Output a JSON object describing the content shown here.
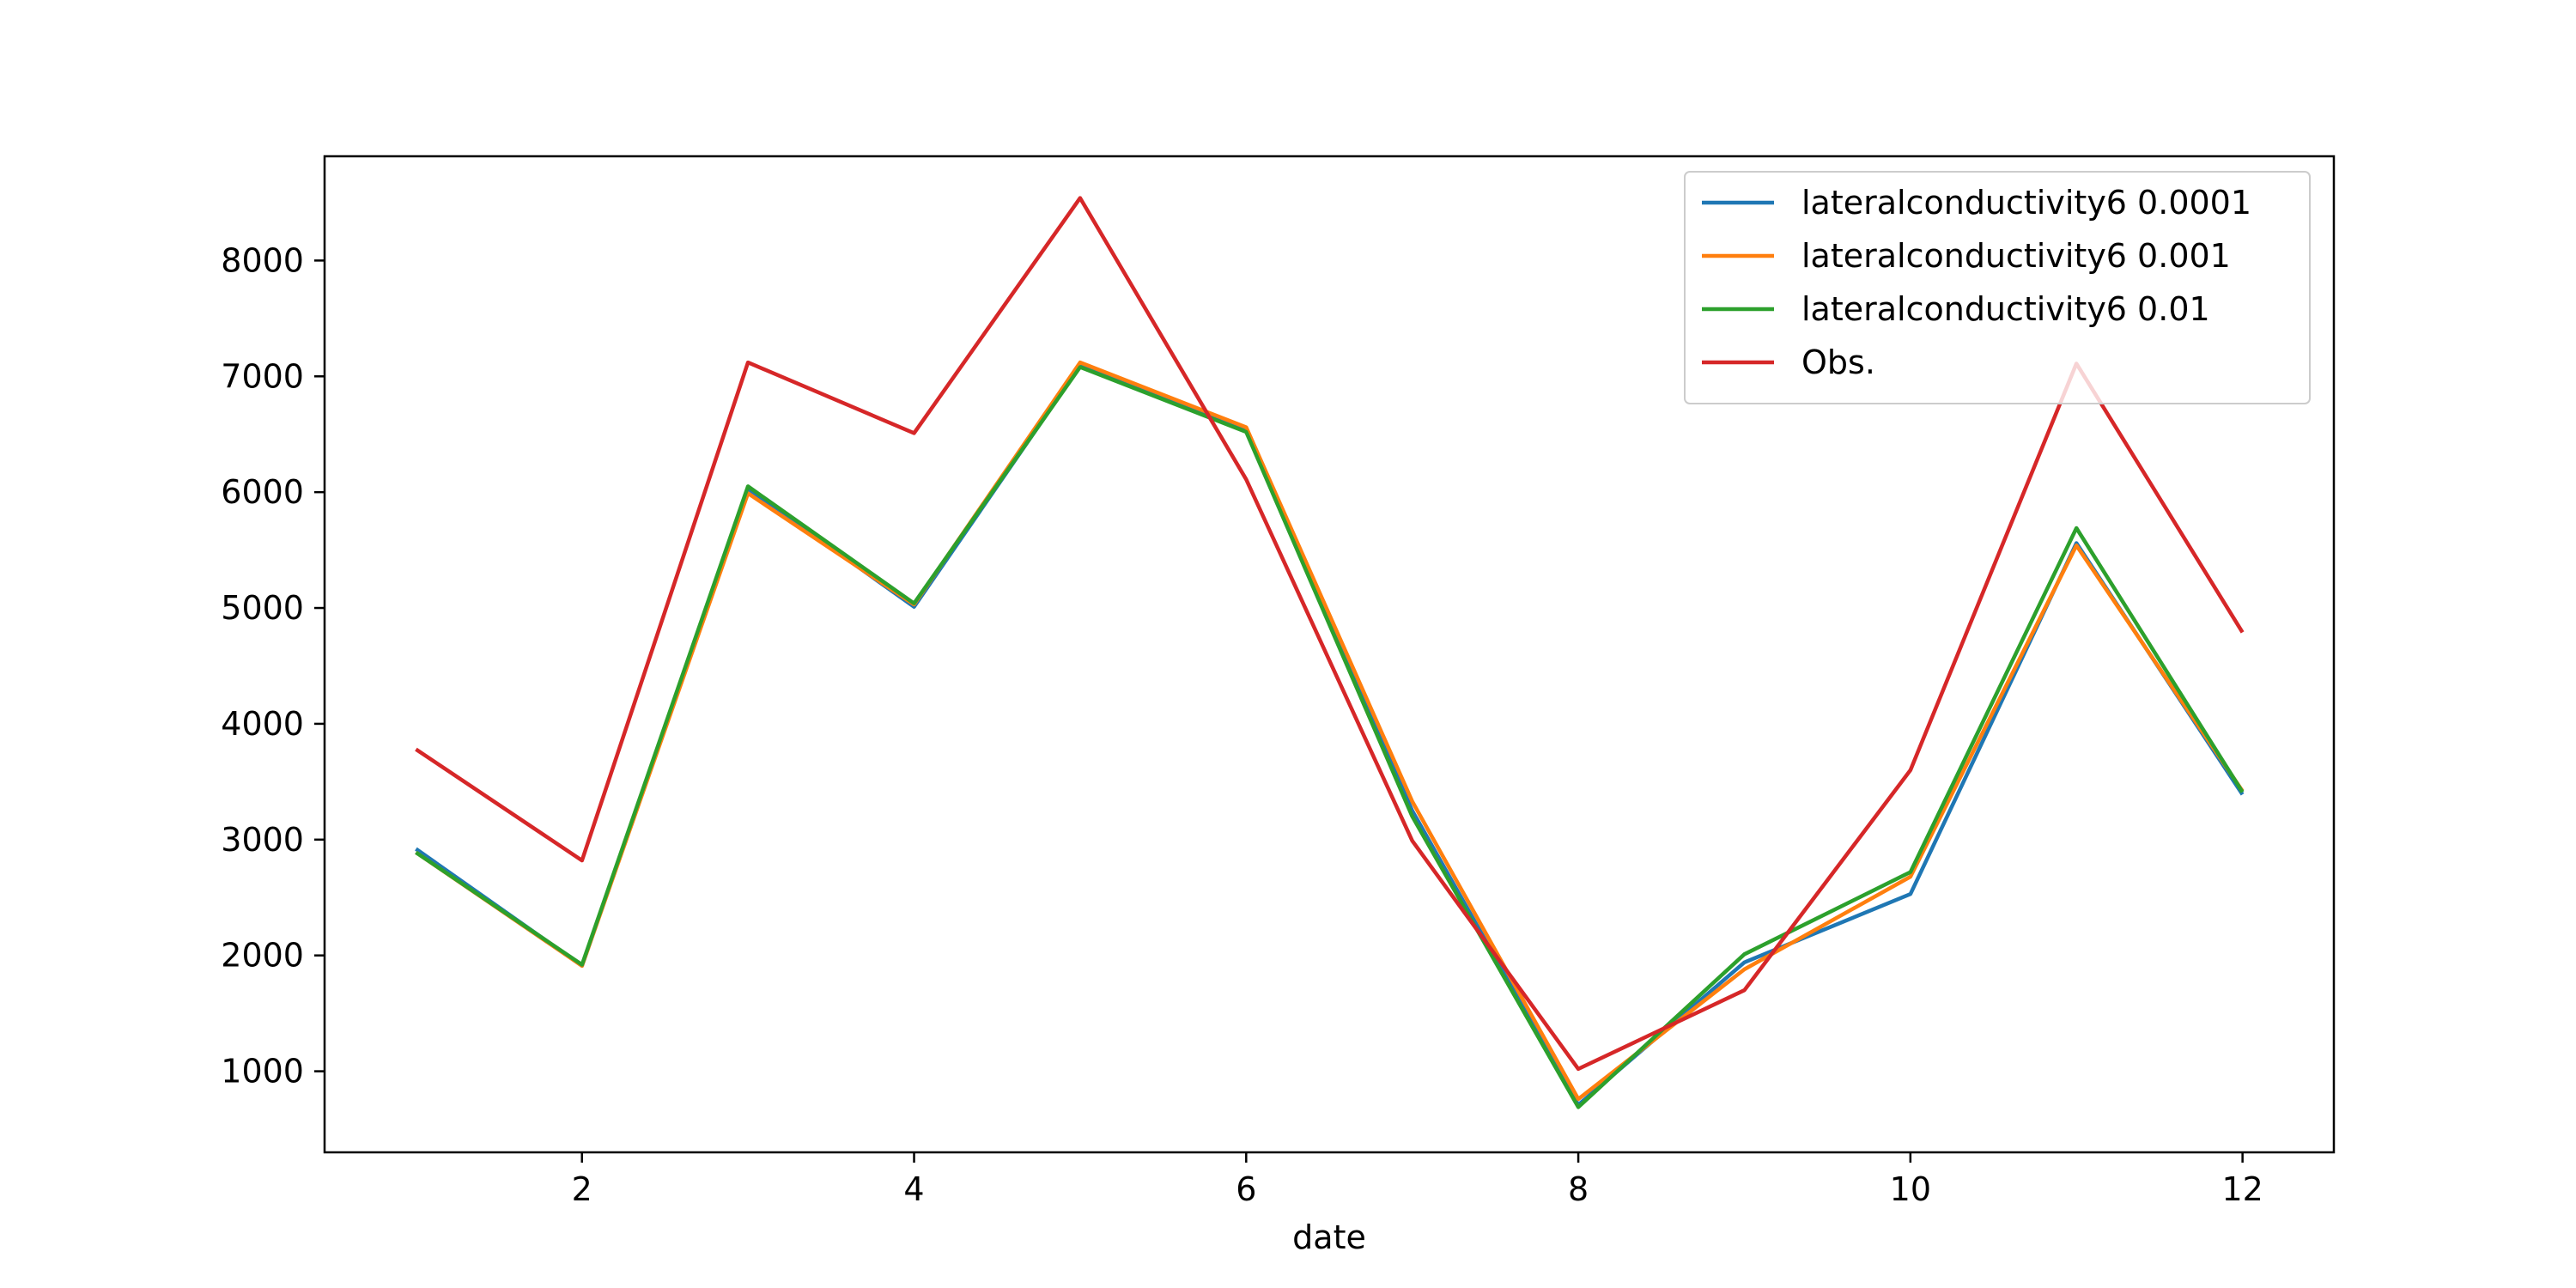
{
  "chart_data": {
    "type": "line",
    "title": "",
    "xlabel": "date",
    "ylabel": "",
    "xlim": [
      0.45,
      12.55
    ],
    "ylim": [
      300,
      8900
    ],
    "xticks": [
      2,
      4,
      6,
      8,
      10,
      12
    ],
    "yticks": [
      1000,
      2000,
      3000,
      4000,
      5000,
      6000,
      7000,
      8000
    ],
    "x": [
      1,
      2,
      3,
      4,
      5,
      6,
      7,
      8,
      9,
      10,
      11,
      12
    ],
    "grid": false,
    "legend_position": "top-right",
    "series": [
      {
        "name": "lateralconductivity6 0.0001",
        "color": "#1f77b4",
        "values": [
          2920,
          1910,
          6030,
          5010,
          7090,
          6540,
          3250,
          710,
          1940,
          2530,
          5560,
          3390
        ]
      },
      {
        "name": "lateralconductivity6 0.001",
        "color": "#ff7f0e",
        "values": [
          2890,
          1910,
          5990,
          5030,
          7120,
          6560,
          3330,
          760,
          1880,
          2680,
          5540,
          3420
        ]
      },
      {
        "name": "lateralconductivity6 0.01",
        "color": "#2ca02c",
        "values": [
          2890,
          1920,
          6050,
          5040,
          7080,
          6520,
          3200,
          690,
          2010,
          2720,
          5690,
          3410
        ]
      },
      {
        "name": "Obs.",
        "color": "#d62728",
        "values": [
          3780,
          2820,
          7120,
          6510,
          8540,
          6110,
          2990,
          1020,
          1700,
          3600,
          7110,
          4790
        ]
      }
    ]
  }
}
